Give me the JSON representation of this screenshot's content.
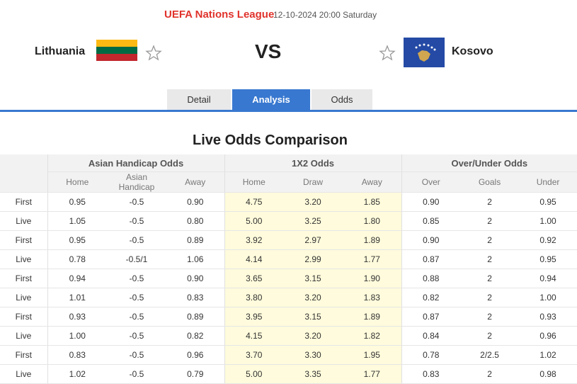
{
  "header": {
    "league": "UEFA Nations League",
    "datetime": "12-10-2024 20:00 Saturday",
    "home_team": "Lithuania",
    "vs": "VS",
    "away_team": "Kosovo"
  },
  "tabs": [
    "Detail",
    "Analysis",
    "Odds"
  ],
  "section_title": "Live Odds Comparison",
  "table": {
    "groups": [
      "Asian Handicap Odds",
      "1X2 Odds",
      "Over/Under Odds"
    ],
    "columns": [
      "Home",
      "Asian Handicap",
      "Away",
      "Home",
      "Draw",
      "Away",
      "Over",
      "Goals",
      "Under"
    ],
    "rows": [
      [
        "First",
        "0.95",
        "-0.5",
        "0.90",
        "4.75",
        "3.20",
        "1.85",
        "0.90",
        "2",
        "0.95"
      ],
      [
        "Live",
        "1.05",
        "-0.5",
        "0.80",
        "5.00",
        "3.25",
        "1.80",
        "0.85",
        "2",
        "1.00"
      ],
      [
        "First",
        "0.95",
        "-0.5",
        "0.89",
        "3.92",
        "2.97",
        "1.89",
        "0.90",
        "2",
        "0.92"
      ],
      [
        "Live",
        "0.78",
        "-0.5/1",
        "1.06",
        "4.14",
        "2.99",
        "1.77",
        "0.87",
        "2",
        "0.95"
      ],
      [
        "First",
        "0.94",
        "-0.5",
        "0.90",
        "3.65",
        "3.15",
        "1.90",
        "0.88",
        "2",
        "0.94"
      ],
      [
        "Live",
        "1.01",
        "-0.5",
        "0.83",
        "3.80",
        "3.20",
        "1.83",
        "0.82",
        "2",
        "1.00"
      ],
      [
        "First",
        "0.93",
        "-0.5",
        "0.89",
        "3.95",
        "3.15",
        "1.89",
        "0.87",
        "2",
        "0.93"
      ],
      [
        "Live",
        "1.00",
        "-0.5",
        "0.82",
        "4.15",
        "3.20",
        "1.82",
        "0.84",
        "2",
        "0.96"
      ],
      [
        "First",
        "0.83",
        "-0.5",
        "0.96",
        "3.70",
        "3.30",
        "1.95",
        "0.78",
        "2/2.5",
        "1.02"
      ],
      [
        "Live",
        "1.02",
        "-0.5",
        "0.79",
        "5.00",
        "3.35",
        "1.77",
        "0.83",
        "2",
        "0.98"
      ]
    ]
  }
}
